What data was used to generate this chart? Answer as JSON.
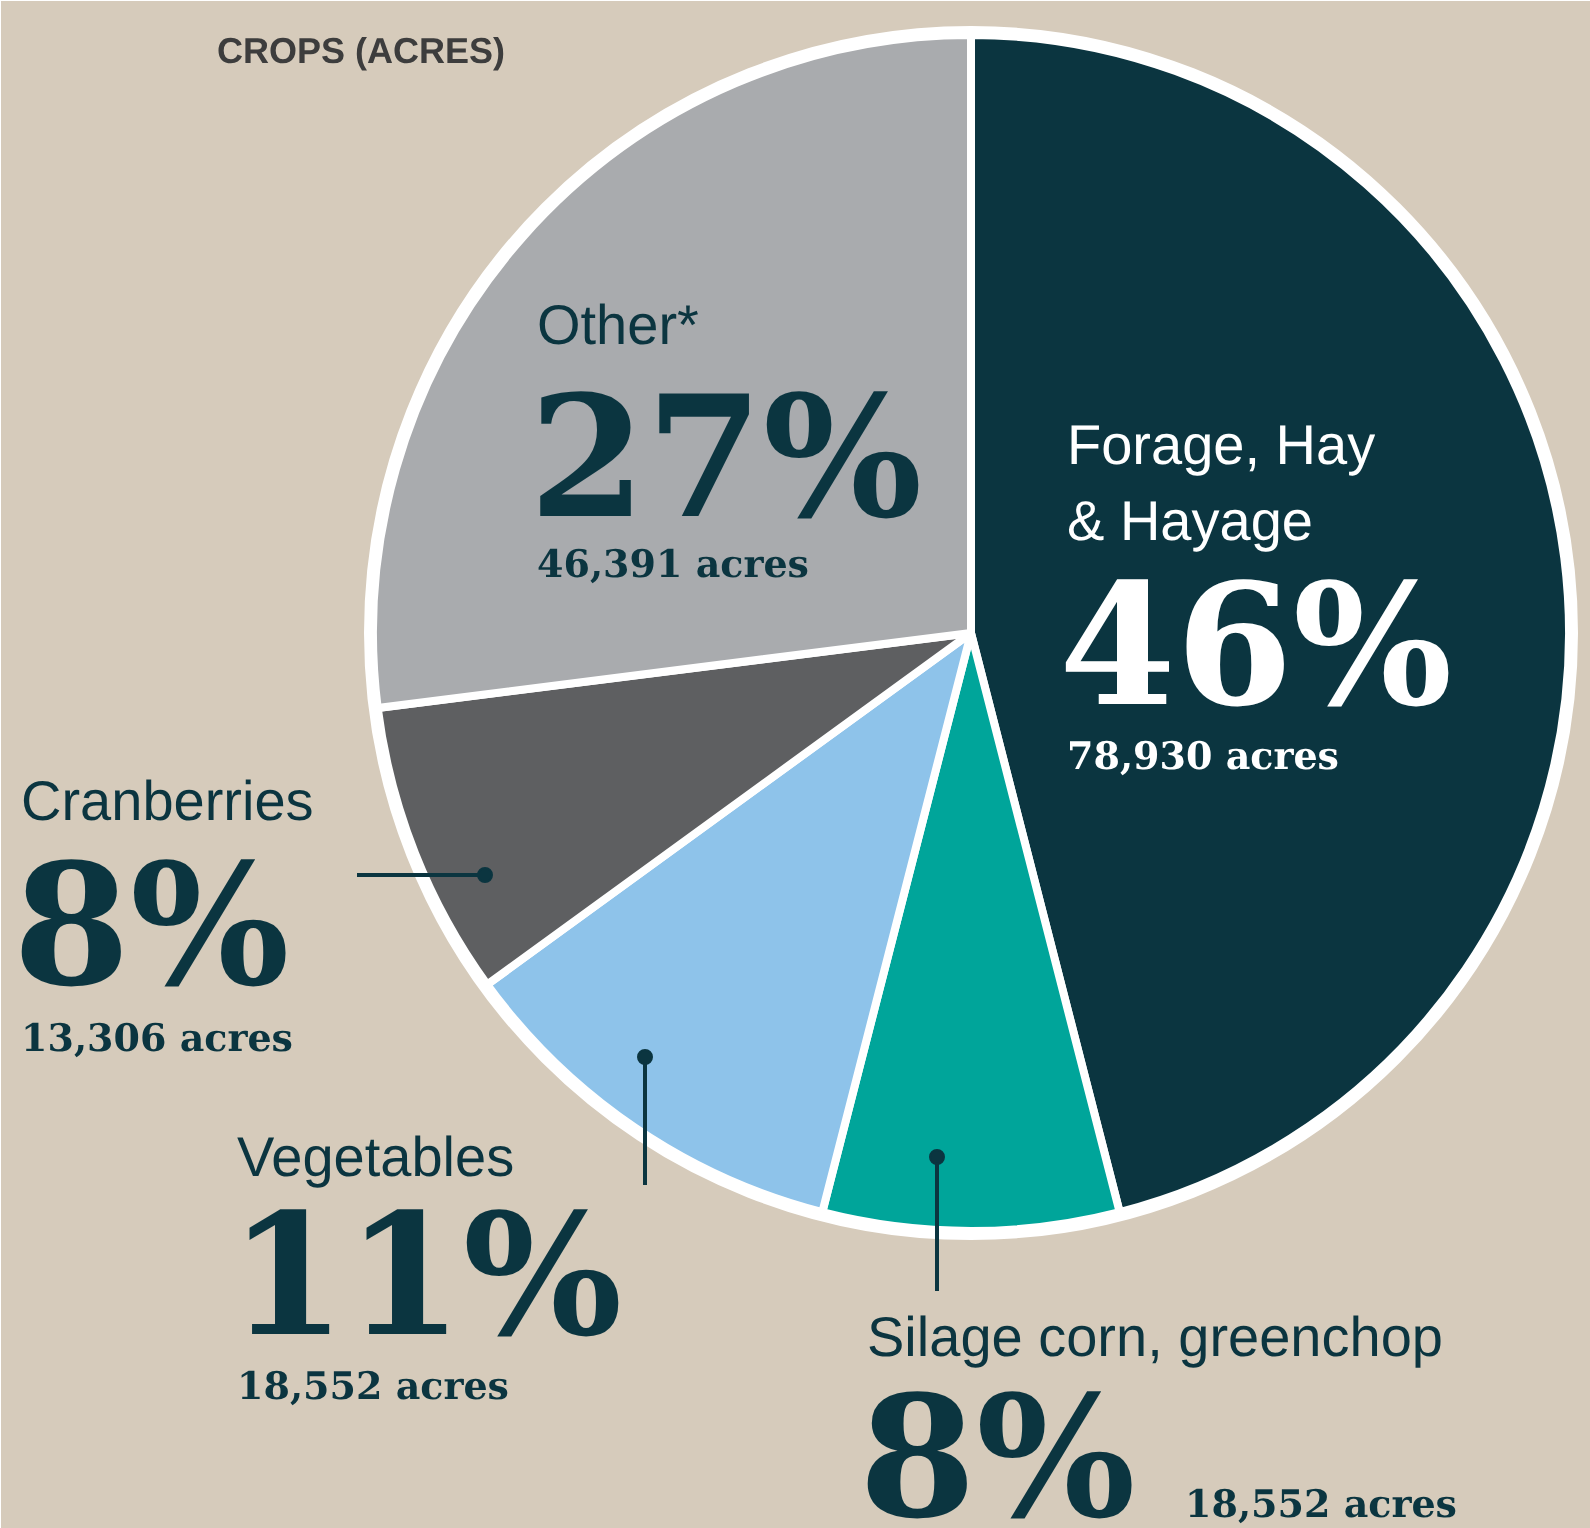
{
  "chart_data": {
    "type": "pie",
    "title": "CROPS (ACRES)",
    "categories": [
      "Forage, Hay & Hayage",
      "Silage corn, greenchop",
      "Vegetables",
      "Cranberries",
      "Other*"
    ],
    "values": [
      46,
      8,
      11,
      8,
      27
    ],
    "colors": [
      "#0b3540",
      "#00a59a",
      "#8ec3ea",
      "#5e5f61",
      "#a9abae"
    ],
    "value_labels": [
      "46%",
      "8%",
      "11%",
      "8%",
      "27%"
    ],
    "annotations": [
      "78,930 acres",
      "18,552 acres",
      "18,552 acres",
      "13,306 acres",
      "46,391 acres"
    ]
  }
}
